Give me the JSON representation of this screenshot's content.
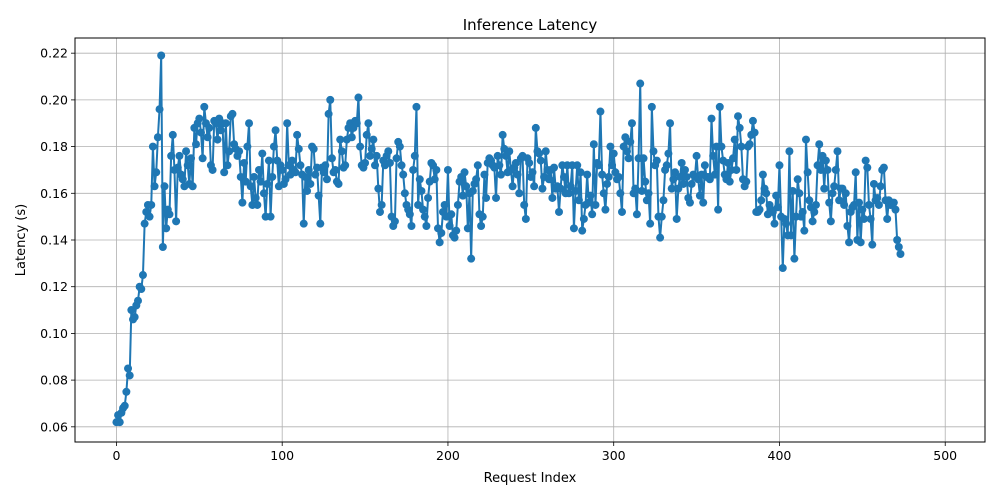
{
  "chart_data": {
    "type": "line",
    "title": "Inference Latency",
    "xlabel": "Request Index",
    "ylabel": "Latency (s)",
    "xlim": [
      -25,
      524
    ],
    "ylim": [
      0.0535,
      0.2265
    ],
    "xticks": [
      0,
      100,
      200,
      300,
      400,
      500
    ],
    "yticks": [
      0.06,
      0.08,
      0.1,
      0.12,
      0.14,
      0.16,
      0.18,
      0.2,
      0.22
    ],
    "ytick_labels": [
      "0.06",
      "0.08",
      "0.10",
      "0.12",
      "0.14",
      "0.16",
      "0.18",
      "0.20",
      "0.22"
    ],
    "grid": true,
    "line_color": "#1f77b4",
    "marker": "circle",
    "series": [
      {
        "x_start": 0,
        "values": [
          0.062,
          0.065,
          0.062,
          0.066,
          0.068,
          0.069,
          0.075,
          0.085,
          0.082,
          0.11,
          0.106,
          0.107,
          0.112,
          0.114,
          0.12,
          0.119,
          0.125,
          0.147,
          0.152,
          0.155,
          0.15,
          0.155,
          0.18,
          0.163,
          0.169,
          0.184,
          0.196,
          0.219,
          0.137,
          0.163,
          0.145,
          0.153,
          0.151,
          0.176,
          0.185,
          0.17,
          0.148,
          0.171,
          0.176,
          0.168,
          0.166,
          0.163,
          0.178,
          0.172,
          0.164,
          0.175,
          0.163,
          0.188,
          0.181,
          0.19,
          0.192,
          0.186,
          0.175,
          0.197,
          0.19,
          0.184,
          0.188,
          0.172,
          0.17,
          0.191,
          0.19,
          0.183,
          0.192,
          0.187,
          0.19,
          0.169,
          0.19,
          0.172,
          0.178,
          0.193,
          0.194,
          0.181,
          0.179,
          0.176,
          0.178,
          0.167,
          0.156,
          0.173,
          0.165,
          0.18,
          0.19,
          0.163,
          0.155,
          0.167,
          0.158,
          0.155,
          0.17,
          0.165,
          0.177,
          0.16,
          0.15,
          0.164,
          0.174,
          0.15,
          0.167,
          0.18,
          0.187,
          0.174,
          0.163,
          0.172,
          0.17,
          0.164,
          0.166,
          0.19,
          0.172,
          0.168,
          0.174,
          0.17,
          0.169,
          0.185,
          0.179,
          0.172,
          0.168,
          0.147,
          0.167,
          0.161,
          0.17,
          0.164,
          0.18,
          0.179,
          0.168,
          0.171,
          0.159,
          0.147,
          0.171,
          0.169,
          0.172,
          0.166,
          0.194,
          0.2,
          0.175,
          0.169,
          0.17,
          0.165,
          0.164,
          0.183,
          0.178,
          0.171,
          0.172,
          0.183,
          0.188,
          0.19,
          0.184,
          0.188,
          0.191,
          0.19,
          0.201,
          0.18,
          0.172,
          0.171,
          0.173,
          0.185,
          0.19,
          0.176,
          0.179,
          0.183,
          0.172,
          0.176,
          0.162,
          0.152,
          0.155,
          0.174,
          0.172,
          0.176,
          0.178,
          0.173,
          0.15,
          0.146,
          0.148,
          0.175,
          0.182,
          0.18,
          0.172,
          0.168,
          0.16,
          0.155,
          0.153,
          0.151,
          0.146,
          0.17,
          0.176,
          0.197,
          0.155,
          0.166,
          0.161,
          0.153,
          0.15,
          0.146,
          0.158,
          0.165,
          0.173,
          0.172,
          0.166,
          0.17,
          0.145,
          0.139,
          0.143,
          0.152,
          0.155,
          0.15,
          0.17,
          0.146,
          0.151,
          0.142,
          0.141,
          0.144,
          0.155,
          0.165,
          0.167,
          0.159,
          0.169,
          0.163,
          0.145,
          0.16,
          0.132,
          0.161,
          0.164,
          0.166,
          0.172,
          0.151,
          0.146,
          0.15,
          0.168,
          0.158,
          0.173,
          0.175,
          0.174,
          0.172,
          0.171,
          0.158,
          0.176,
          0.172,
          0.168,
          0.185,
          0.179,
          0.176,
          0.169,
          0.178,
          0.17,
          0.163,
          0.171,
          0.173,
          0.168,
          0.16,
          0.175,
          0.176,
          0.155,
          0.149,
          0.175,
          0.173,
          0.167,
          0.169,
          0.163,
          0.188,
          0.178,
          0.177,
          0.174,
          0.162,
          0.167,
          0.178,
          0.17,
          0.166,
          0.17,
          0.158,
          0.171,
          0.162,
          0.163,
          0.152,
          0.162,
          0.172,
          0.167,
          0.16,
          0.172,
          0.16,
          0.163,
          0.172,
          0.145,
          0.161,
          0.172,
          0.157,
          0.169,
          0.144,
          0.149,
          0.155,
          0.168,
          0.156,
          0.159,
          0.151,
          0.181,
          0.155,
          0.173,
          0.172,
          0.195,
          0.168,
          0.16,
          0.153,
          0.164,
          0.167,
          0.18,
          0.172,
          0.177,
          0.169,
          0.166,
          0.167,
          0.16,
          0.152,
          0.18,
          0.184,
          0.178,
          0.175,
          0.182,
          0.19,
          0.16,
          0.162,
          0.151,
          0.175,
          0.207,
          0.161,
          0.175,
          0.165,
          0.157,
          0.16,
          0.147,
          0.197,
          0.178,
          0.172,
          0.174,
          0.15,
          0.141,
          0.15,
          0.157,
          0.17,
          0.172,
          0.177,
          0.19,
          0.162,
          0.166,
          0.169,
          0.149,
          0.162,
          0.167,
          0.173,
          0.164,
          0.17,
          0.167,
          0.158,
          0.156,
          0.164,
          0.168,
          0.167,
          0.176,
          0.166,
          0.159,
          0.168,
          0.156,
          0.172,
          0.167,
          0.167,
          0.166,
          0.192,
          0.176,
          0.168,
          0.18,
          0.153,
          0.197,
          0.18,
          0.174,
          0.168,
          0.166,
          0.173,
          0.165,
          0.17,
          0.175,
          0.183,
          0.17,
          0.193,
          0.188,
          0.18,
          0.166,
          0.163,
          0.165,
          0.18,
          0.181,
          0.185,
          0.191,
          0.186,
          0.152,
          0.152,
          0.153,
          0.157,
          0.168,
          0.162,
          0.16,
          0.151,
          0.155,
          0.153,
          0.152,
          0.147,
          0.159,
          0.154,
          0.172,
          0.15,
          0.128,
          0.149,
          0.147,
          0.142,
          0.178,
          0.142,
          0.161,
          0.132,
          0.15,
          0.166,
          0.16,
          0.15,
          0.152,
          0.144,
          0.183,
          0.169,
          0.157,
          0.154,
          0.148,
          0.152,
          0.155,
          0.172,
          0.181,
          0.17,
          0.176,
          0.162,
          0.174,
          0.17,
          0.156,
          0.148,
          0.16,
          0.163,
          0.17,
          0.178,
          0.157,
          0.162,
          0.162,
          0.155,
          0.16,
          0.146,
          0.139,
          0.152,
          0.154,
          0.155,
          0.169,
          0.14,
          0.156,
          0.139,
          0.153,
          0.149,
          0.174,
          0.171,
          0.155,
          0.149,
          0.138,
          0.164,
          0.157,
          0.158,
          0.155,
          0.163,
          0.17,
          0.171,
          0.157,
          0.149,
          0.157,
          0.155,
          0.155,
          0.156,
          0.153,
          0.14,
          0.137,
          0.134
        ]
      }
    ]
  }
}
